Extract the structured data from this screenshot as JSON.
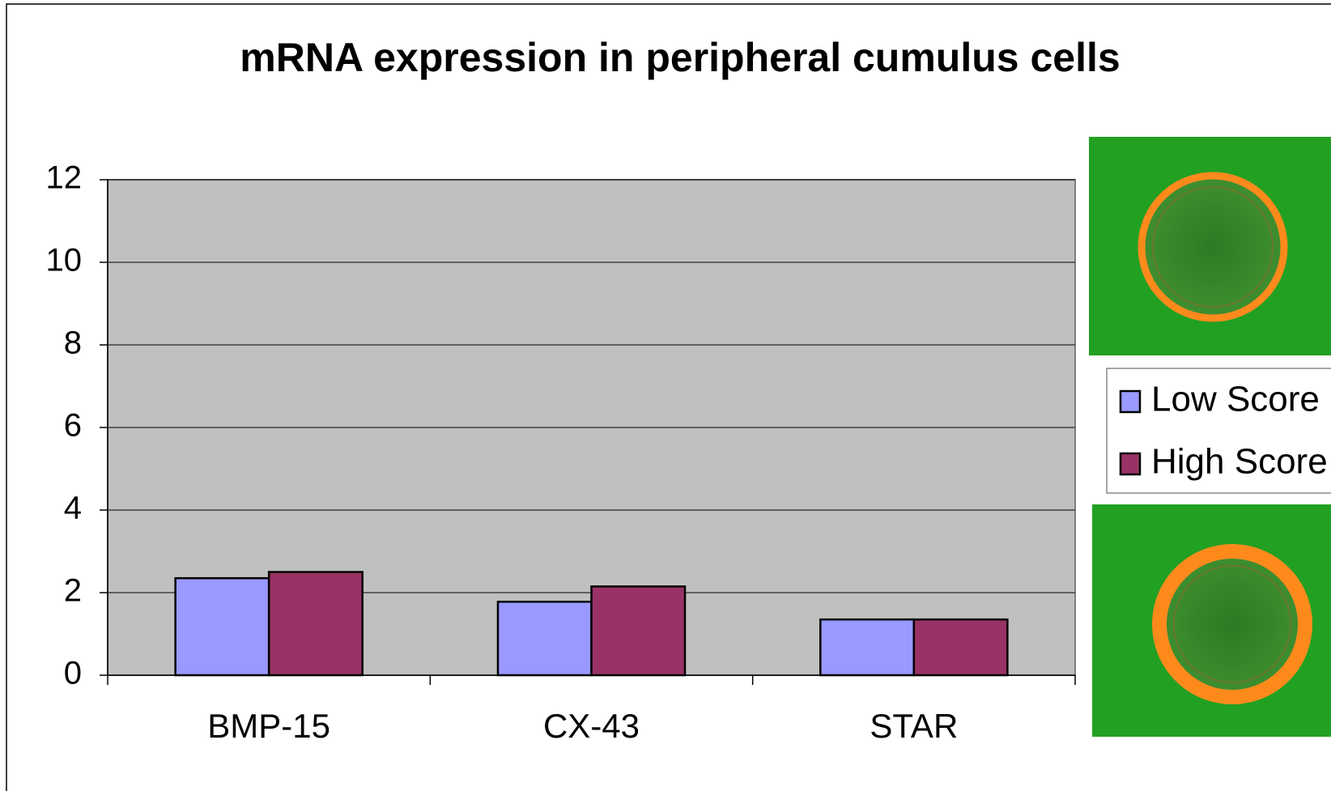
{
  "chart_data": {
    "type": "bar",
    "title": "mRNA expression in peripheral cumulus cells",
    "categories": [
      "BMP-15",
      "CX-43",
      "STAR"
    ],
    "series": [
      {
        "name": "Low Score",
        "color": "#9999ff",
        "values": [
          2.35,
          1.78,
          1.35
        ]
      },
      {
        "name": "High Score",
        "color": "#993366",
        "values": [
          2.5,
          2.15,
          1.35
        ]
      }
    ],
    "ylim": [
      0,
      12
    ],
    "yticks": [
      0,
      2,
      4,
      6,
      8,
      10,
      12
    ],
    "grid": true,
    "legend": "right"
  }
}
